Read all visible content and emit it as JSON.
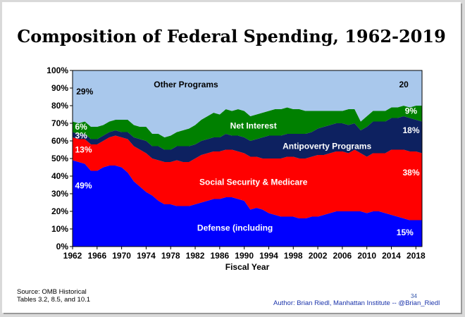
{
  "slide": {
    "title": "Composition of  Federal Spending, 1962-2019",
    "source_line1": "Source: OMB Historical",
    "source_line2": "Tables 3.2, 8.5, and 10.1",
    "page_number": "34",
    "author": "Author: Brian Riedl, Manhattan Institute -- @Brian_Riedl"
  },
  "chart_data": {
    "type": "area",
    "stacked": true,
    "title": "Composition of  Federal Spending, 1962-2019",
    "xlabel": "Fiscal Year",
    "ylabel": "",
    "xlim": [
      1962,
      2019
    ],
    "ylim": [
      0,
      100
    ],
    "y_unit": "%",
    "y_ticks": [
      "0%",
      "10%",
      "20%",
      "30%",
      "40%",
      "50%",
      "60%",
      "70%",
      "80%",
      "90%",
      "100%"
    ],
    "x_ticks": [
      1962,
      1966,
      1970,
      1974,
      1978,
      1982,
      1986,
      1990,
      1994,
      1998,
      2002,
      2006,
      2010,
      2014,
      2018
    ],
    "grid": false,
    "legend": "none",
    "x": [
      1962,
      1963,
      1964,
      1965,
      1966,
      1967,
      1968,
      1969,
      1970,
      1971,
      1972,
      1973,
      1974,
      1975,
      1976,
      1977,
      1978,
      1979,
      1980,
      1981,
      1982,
      1983,
      1984,
      1985,
      1986,
      1987,
      1988,
      1989,
      1990,
      1991,
      1992,
      1993,
      1994,
      1995,
      1996,
      1997,
      1998,
      1999,
      2000,
      2001,
      2002,
      2003,
      2004,
      2005,
      2006,
      2007,
      2008,
      2009,
      2010,
      2011,
      2012,
      2013,
      2014,
      2015,
      2016,
      2017,
      2018,
      2019
    ],
    "series": [
      {
        "name": "Defense (including",
        "color": "#0000ff",
        "values": [
          49,
          48,
          47,
          43,
          43,
          45,
          46,
          46,
          45,
          42,
          37,
          34,
          31,
          29,
          26,
          24,
          24,
          23,
          23,
          23,
          24,
          25,
          26,
          27,
          27,
          28,
          28,
          27,
          26,
          21,
          22,
          21,
          19,
          18,
          17,
          17,
          17,
          16,
          16,
          17,
          17,
          18,
          19,
          20,
          20,
          20,
          20,
          20,
          19,
          20,
          20,
          19,
          18,
          17,
          16,
          15,
          15,
          15
        ]
      },
      {
        "name": "Social Security & Medicare",
        "color": "#ff0000",
        "values": [
          13,
          13,
          14,
          15,
          15,
          15,
          16,
          17,
          17,
          19,
          20,
          21,
          22,
          21,
          23,
          24,
          24,
          26,
          25,
          25,
          26,
          27,
          27,
          27,
          27,
          27,
          27,
          27,
          27,
          30,
          29,
          29,
          31,
          32,
          33,
          34,
          34,
          34,
          34,
          34,
          35,
          34,
          34,
          34,
          34,
          33,
          35,
          33,
          32,
          33,
          33,
          34,
          37,
          38,
          39,
          39,
          39,
          38
        ]
      },
      {
        "name": "Antipoverty Programs",
        "color": "#0d2160",
        "values": [
          3,
          3,
          3,
          3,
          3,
          3,
          3,
          3,
          3,
          4,
          5,
          6,
          7,
          7,
          8,
          7,
          7,
          8,
          9,
          9,
          8,
          8,
          8,
          8,
          8,
          9,
          8,
          9,
          9,
          9,
          10,
          12,
          13,
          13,
          13,
          13,
          13,
          14,
          14,
          14,
          15,
          16,
          16,
          16,
          16,
          16,
          15,
          13,
          17,
          18,
          18,
          18,
          18,
          18,
          19,
          19,
          18,
          18
        ]
      },
      {
        "name": "Net Interest",
        "color": "#008000",
        "values": [
          6,
          6,
          7,
          7,
          7,
          6,
          6,
          6,
          7,
          7,
          7,
          7,
          8,
          7,
          7,
          7,
          8,
          8,
          9,
          10,
          11,
          12,
          13,
          14,
          13,
          14,
          14,
          15,
          15,
          14,
          14,
          14,
          14,
          15,
          15,
          15,
          14,
          14,
          13,
          12,
          10,
          9,
          8,
          7,
          7,
          9,
          8,
          5,
          6,
          6,
          6,
          6,
          6,
          6,
          6,
          6,
          8,
          9
        ]
      },
      {
        "name": "Other Programs",
        "color": "#a9c8ec",
        "values": [
          29,
          30,
          29,
          32,
          32,
          31,
          29,
          28,
          28,
          28,
          31,
          32,
          32,
          36,
          36,
          38,
          37,
          35,
          34,
          33,
          31,
          28,
          26,
          24,
          25,
          22,
          23,
          22,
          23,
          26,
          25,
          24,
          23,
          22,
          22,
          21,
          22,
          22,
          23,
          23,
          23,
          23,
          23,
          23,
          23,
          22,
          22,
          29,
          26,
          23,
          23,
          23,
          21,
          21,
          20,
          21,
          20,
          20
        ]
      }
    ],
    "labels": {
      "defense_pct_1962": "49%",
      "ss_pct_1962": "13%",
      "antipoverty_pct_1962": "3%",
      "interest_pct_1962": "6%",
      "other_pct_1962": "29%",
      "other_end": "20",
      "interest_end": "9%",
      "antipoverty_end": "18%",
      "ss_end": "38%",
      "defense_end": "15%"
    }
  }
}
